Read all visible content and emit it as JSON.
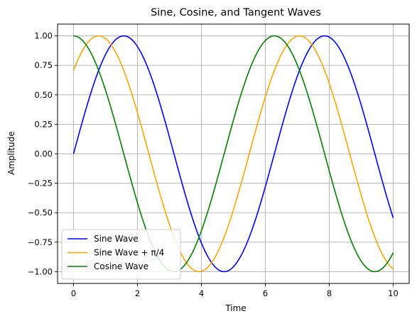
{
  "chart_data": {
    "type": "line",
    "title": "Sine, Cosine, and Tangent Waves",
    "xlabel": "Time",
    "ylabel": "Amplitude",
    "xlim": [
      -0.5,
      10.5
    ],
    "ylim": [
      -1.1,
      1.1
    ],
    "xticks": [
      0,
      2,
      4,
      6,
      8,
      10
    ],
    "yticks": [
      -1.0,
      -0.75,
      -0.5,
      -0.25,
      0.0,
      0.25,
      0.5,
      0.75,
      1.0
    ],
    "xtick_labels": [
      "0",
      "2",
      "4",
      "6",
      "8",
      "10"
    ],
    "ytick_labels": [
      "−1.00",
      "−0.75",
      "−0.50",
      "−0.25",
      "0.00",
      "0.25",
      "0.50",
      "0.75",
      "1.00"
    ],
    "grid": true,
    "legend_position": "lower-left",
    "series": [
      {
        "name": "Sine Wave",
        "color": "#0000ff",
        "function": "sin(t)",
        "x": [
          0,
          0.5,
          1.0,
          1.5708,
          2.0,
          2.5,
          3.0,
          3.5,
          4.0,
          4.7124,
          5.0,
          5.5,
          6.0,
          6.5,
          7.0,
          7.854,
          8.5,
          9.0,
          9.5,
          10.0
        ],
        "y": [
          0.0,
          0.479,
          0.841,
          1.0,
          0.909,
          0.598,
          0.141,
          -0.351,
          -0.757,
          -1.0,
          -0.959,
          -0.706,
          -0.279,
          0.215,
          0.657,
          1.0,
          0.798,
          0.412,
          -0.075,
          -0.544
        ]
      },
      {
        "name": "Sine Wave + π/4",
        "color": "#ffa500",
        "function": "sin(t + π/4)",
        "x": [
          0,
          0.7854,
          1.5,
          2.0,
          2.5,
          3.0,
          3.927,
          4.5,
          5.0,
          5.5,
          6.0,
          7.0686,
          7.5,
          8.0,
          8.5,
          9.0,
          9.5,
          10.0
        ],
        "y": [
          0.707,
          1.0,
          0.762,
          0.349,
          -0.141,
          -0.6,
          -1.0,
          -0.76,
          -0.372,
          0.11,
          0.577,
          1.0,
          0.906,
          0.649,
          0.263,
          -0.248,
          -0.594,
          -0.976
        ]
      },
      {
        "name": "Cosine Wave",
        "color": "#008000",
        "function": "cos(t)",
        "x": [
          0,
          0.5,
          1.0,
          1.5,
          2.0,
          2.5,
          3.1416,
          3.5,
          4.0,
          4.5,
          5.0,
          5.5,
          6.2832,
          7.0,
          7.5,
          8.0,
          8.5,
          9.4248,
          10.0
        ],
        "y": [
          1.0,
          0.878,
          0.54,
          0.071,
          -0.416,
          -0.801,
          -1.0,
          -0.936,
          -0.654,
          -0.211,
          0.284,
          0.709,
          1.0,
          0.754,
          0.347,
          -0.146,
          -0.602,
          -1.0,
          -0.839
        ]
      }
    ]
  }
}
